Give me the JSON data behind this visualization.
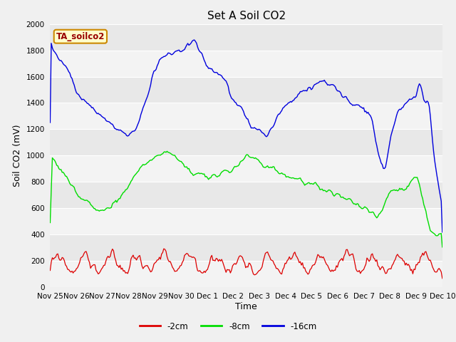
{
  "title": "Set A Soil CO2",
  "xlabel": "Time",
  "ylabel": "Soil CO2 (mV)",
  "ylim": [
    0,
    2000
  ],
  "fig_bg_color": "#f0f0f0",
  "plot_bg_color": "#e8e8e8",
  "grid_color": "#ffffff",
  "legend_label_2cm": "-2cm",
  "legend_label_8cm": "-8cm",
  "legend_label_16cm": "-16cm",
  "color_2cm": "#dd0000",
  "color_8cm": "#00dd00",
  "color_16cm": "#0000dd",
  "annotation_text": "TA_soilco2",
  "annotation_bg": "#ffffcc",
  "annotation_border": "#cc8800",
  "x_tick_labels": [
    "Nov 25",
    "Nov 26",
    "Nov 27",
    "Nov 28",
    "Nov 29",
    "Nov 30",
    "Dec 1",
    "Dec 2",
    "Dec 3",
    "Dec 4",
    "Dec 5",
    "Dec 6",
    "Dec 7",
    "Dec 8",
    "Dec 9",
    "Dec 10"
  ],
  "title_fontsize": 11,
  "axis_fontsize": 9,
  "tick_fontsize": 7.5,
  "annotation_fontsize": 8.5
}
